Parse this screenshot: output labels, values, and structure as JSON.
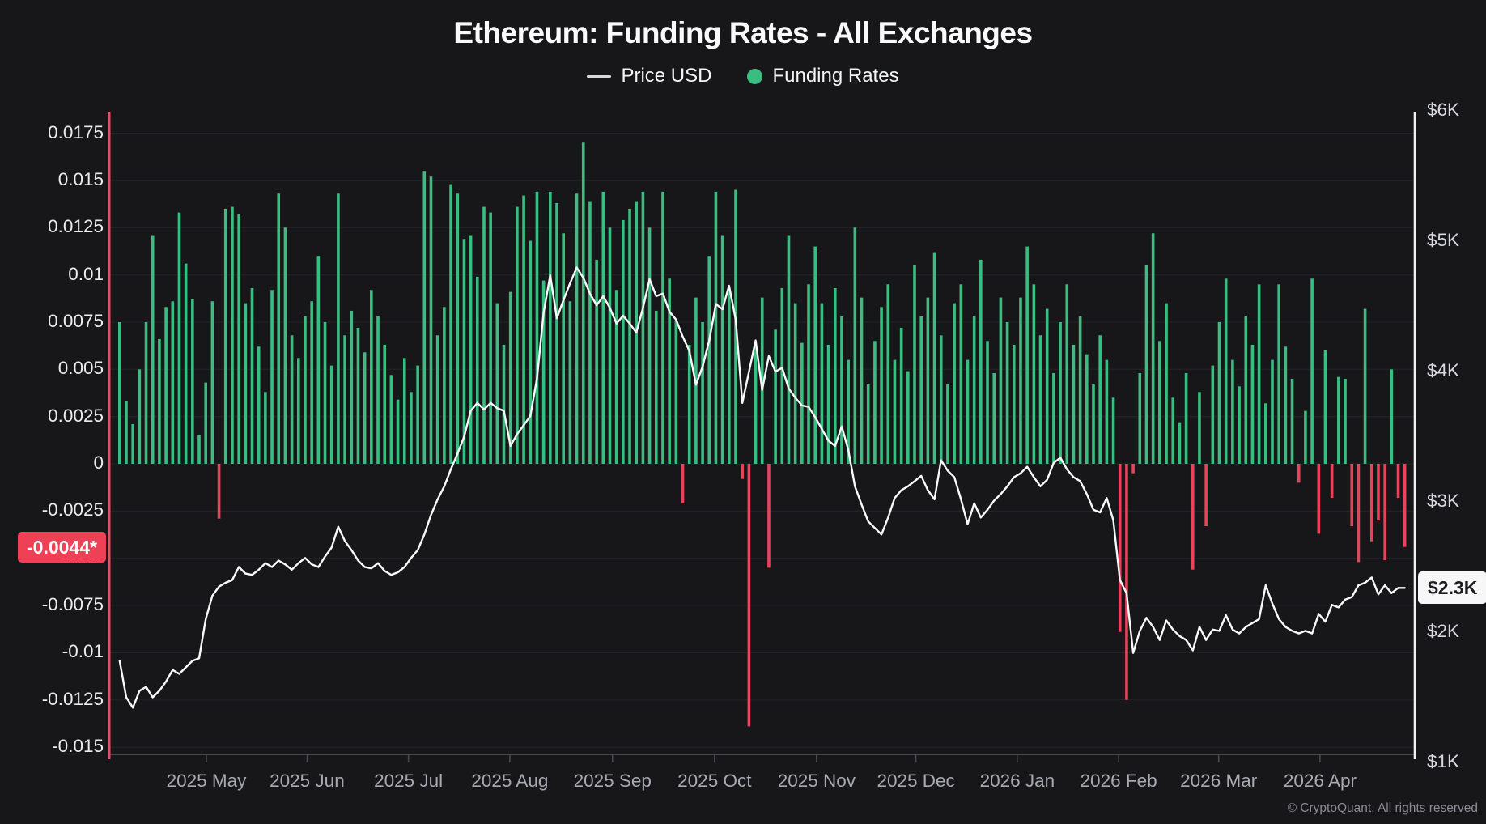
{
  "header": {
    "title": "Ethereum: Funding Rates - All Exchanges"
  },
  "legend": {
    "price_label": "Price USD",
    "funding_label": "Funding Rates"
  },
  "left_axis": {
    "tick_labels": [
      "0.0175",
      "0.015",
      "0.0125",
      "0.01",
      "0.0075",
      "0.005",
      "0.0025",
      "0",
      "-0.0025",
      "-0.005",
      "-0.0075",
      "-0.01",
      "-0.0125",
      "-0.015"
    ],
    "current_badge": "-0.0044*"
  },
  "right_axis": {
    "ticks": [
      {
        "label": "$6K",
        "k": 6
      },
      {
        "label": "$5K",
        "k": 5
      },
      {
        "label": "$4K",
        "k": 4
      },
      {
        "label": "$3K",
        "k": 3
      },
      {
        "label": "$2K",
        "k": 2
      },
      {
        "label": "$1K",
        "k": 1
      }
    ],
    "current_badge": "$2.3K"
  },
  "footer": {
    "copyright": "© CryptoQuant. All rights reserved"
  },
  "colors": {
    "background": "#17171a",
    "positive_bar": "#3abd81",
    "negative_bar": "#e5445a",
    "price_line": "#fafafa",
    "gridline": "#222227",
    "axis_line": "#47474e",
    "left_axis_line": "#e05263",
    "right_axis_line": "#f2f2f4",
    "badge_negative_bg": "#ef4156",
    "badge_price_bg": "#f7f7f8"
  },
  "chart_data": {
    "type": "combo",
    "title": "Ethereum: Funding Rates - All Exchanges",
    "x": {
      "start": "2025-04-06",
      "interval_days": 2,
      "count": 195
    },
    "funding_axis": {
      "min": -0.015,
      "max": 0.0175,
      "tick_step": 0.0025,
      "grid": true
    },
    "price_axis": {
      "min_usd": 1000,
      "max_usd": 6000,
      "tick_step_usd": 1000,
      "latest_usd": 2340
    },
    "latest_funding_rate": -0.0044,
    "month_ticks": [
      {
        "label": "2025 May",
        "slot": 13.1
      },
      {
        "label": "2025 Jun",
        "slot": 28.3
      },
      {
        "label": "2025 Jul",
        "slot": 43.6
      },
      {
        "label": "2025 Aug",
        "slot": 58.9
      },
      {
        "label": "2025 Sep",
        "slot": 74.4
      },
      {
        "label": "2025 Oct",
        "slot": 89.8
      },
      {
        "label": "2025 Nov",
        "slot": 105.2
      },
      {
        "label": "2025 Dec",
        "slot": 120.2
      },
      {
        "label": "2026 Jan",
        "slot": 135.5
      },
      {
        "label": "2026 Feb",
        "slot": 150.8
      },
      {
        "label": "2026 Mar",
        "slot": 165.9
      },
      {
        "label": "2026 Apr",
        "slot": 181.2
      }
    ],
    "series": [
      {
        "name": "Funding Rates",
        "type": "bar",
        "values": [
          0.0075,
          0.0033,
          0.0021,
          0.005,
          0.0075,
          0.0121,
          0.0066,
          0.0083,
          0.0086,
          0.0133,
          0.0106,
          0.0087,
          0.0015,
          0.0043,
          0.0086,
          -0.0029,
          0.0135,
          0.0136,
          0.0132,
          0.0085,
          0.0093,
          0.0062,
          0.0038,
          0.0092,
          0.0143,
          0.0125,
          0.0068,
          0.0056,
          0.0078,
          0.0086,
          0.011,
          0.0075,
          0.0052,
          0.0143,
          0.0068,
          0.0081,
          0.0072,
          0.0059,
          0.0092,
          0.0078,
          0.0063,
          0.0047,
          0.0034,
          0.0056,
          0.0038,
          0.0052,
          0.0155,
          0.0152,
          0.0068,
          0.0083,
          0.0148,
          0.0143,
          0.0119,
          0.0121,
          0.0099,
          0.0136,
          0.0133,
          0.0085,
          0.0063,
          0.0091,
          0.0136,
          0.0142,
          0.0118,
          0.0144,
          0.0097,
          0.0144,
          0.0138,
          0.0122,
          0.0086,
          0.0143,
          0.017,
          0.0139,
          0.0108,
          0.0144,
          0.0125,
          0.0092,
          0.0129,
          0.0135,
          0.0139,
          0.0144,
          0.0125,
          0.0081,
          0.0144,
          0.0098,
          0.0076,
          -0.0021,
          0.0063,
          0.0088,
          0.0075,
          0.011,
          0.0144,
          0.0121,
          0.0093,
          0.0145,
          -0.0008,
          -0.0139,
          0.0062,
          0.0088,
          -0.0055,
          0.0071,
          0.0093,
          0.0121,
          0.0085,
          0.0064,
          0.0095,
          0.0115,
          0.0085,
          0.0063,
          0.0093,
          0.0078,
          0.0055,
          0.0125,
          0.0088,
          0.0042,
          0.0065,
          0.0083,
          0.0095,
          0.0055,
          0.0072,
          0.0049,
          0.0105,
          0.0078,
          0.0088,
          0.0112,
          0.0068,
          0.0042,
          0.0085,
          0.0095,
          0.0055,
          0.0078,
          0.0108,
          0.0065,
          0.0048,
          0.0088,
          0.0075,
          0.0063,
          0.0088,
          0.0115,
          0.0095,
          0.0068,
          0.0082,
          0.0048,
          0.0075,
          0.0095,
          0.0063,
          0.0078,
          0.0058,
          0.0042,
          0.0068,
          0.0055,
          0.0035,
          -0.0089,
          -0.0125,
          -0.0005,
          0.0048,
          0.0105,
          0.0122,
          0.0065,
          0.0085,
          0.0035,
          0.0022,
          0.0048,
          -0.0056,
          0.0038,
          -0.0033,
          0.0052,
          0.0075,
          0.0098,
          0.0055,
          0.0041,
          0.0078,
          0.0063,
          0.0095,
          0.0032,
          0.0055,
          0.0095,
          0.0062,
          0.0045,
          -0.001,
          0.0028,
          0.0098,
          -0.0037,
          0.006,
          -0.0018,
          0.0046,
          0.0045,
          -0.0033,
          -0.0052,
          0.0082,
          -0.0041,
          -0.003,
          -0.0051,
          0.005,
          -0.0018,
          -0.0044
        ]
      },
      {
        "name": "Price USD",
        "type": "line",
        "unit": "USD thousands",
        "values": [
          1.78,
          1.5,
          1.42,
          1.55,
          1.58,
          1.5,
          1.55,
          1.62,
          1.71,
          1.68,
          1.73,
          1.78,
          1.8,
          2.1,
          2.28,
          2.35,
          2.38,
          2.4,
          2.5,
          2.45,
          2.44,
          2.48,
          2.53,
          2.5,
          2.55,
          2.52,
          2.48,
          2.53,
          2.57,
          2.52,
          2.5,
          2.58,
          2.65,
          2.81,
          2.7,
          2.63,
          2.55,
          2.5,
          2.49,
          2.53,
          2.47,
          2.44,
          2.46,
          2.5,
          2.57,
          2.63,
          2.75,
          2.9,
          3.02,
          3.12,
          3.25,
          3.37,
          3.5,
          3.7,
          3.76,
          3.71,
          3.76,
          3.72,
          3.7,
          3.43,
          3.52,
          3.59,
          3.66,
          3.95,
          4.45,
          4.74,
          4.41,
          4.55,
          4.68,
          4.8,
          4.72,
          4.6,
          4.51,
          4.58,
          4.49,
          4.37,
          4.43,
          4.37,
          4.3,
          4.49,
          4.71,
          4.58,
          4.6,
          4.46,
          4.4,
          4.27,
          4.16,
          3.9,
          4.04,
          4.24,
          4.52,
          4.48,
          4.66,
          4.4,
          3.76,
          4.0,
          4.24,
          3.86,
          4.12,
          4.0,
          4.03,
          3.87,
          3.8,
          3.74,
          3.73,
          3.65,
          3.56,
          3.47,
          3.43,
          3.58,
          3.4,
          3.12,
          2.98,
          2.85,
          2.8,
          2.75,
          2.88,
          3.03,
          3.09,
          3.12,
          3.16,
          3.2,
          3.09,
          3.02,
          3.32,
          3.24,
          3.19,
          3.02,
          2.83,
          2.99,
          2.88,
          2.94,
          3.01,
          3.06,
          3.12,
          3.19,
          3.22,
          3.27,
          3.19,
          3.12,
          3.17,
          3.3,
          3.34,
          3.25,
          3.19,
          3.16,
          3.06,
          2.94,
          2.92,
          3.03,
          2.86,
          2.4,
          2.3,
          1.84,
          2.01,
          2.11,
          2.04,
          1.94,
          2.09,
          2.02,
          1.97,
          1.94,
          1.86,
          2.04,
          1.94,
          2.02,
          2.01,
          2.13,
          2.02,
          1.99,
          2.04,
          2.07,
          2.1,
          2.36,
          2.22,
          2.1,
          2.04,
          2.01,
          1.99,
          2.01,
          1.99,
          2.14,
          2.08,
          2.21,
          2.19,
          2.25,
          2.27,
          2.36,
          2.38,
          2.42,
          2.29,
          2.36,
          2.3,
          2.34,
          2.34
        ]
      }
    ]
  }
}
